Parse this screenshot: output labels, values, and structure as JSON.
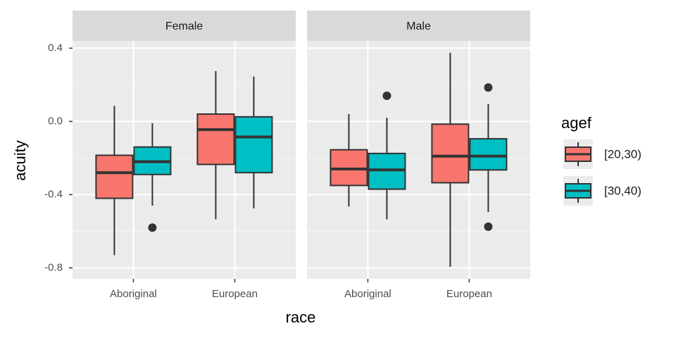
{
  "chart_data": {
    "type": "box",
    "facets": [
      "Female",
      "Male"
    ],
    "categories": [
      "Aboriginal",
      "European"
    ],
    "x_label": "race",
    "y_label": "acuity",
    "legend_title": "agef",
    "ylim": [
      -0.86,
      0.44
    ],
    "yticks": [
      -0.8,
      -0.4,
      {
        "value": 0,
        "label": "0.0"
      },
      0.4
    ],
    "grid": true,
    "series": [
      {
        "name": "[20,30)",
        "color": "#F8766D",
        "boxes": [
          [
            {
              "low": -0.73,
              "q1": -0.42,
              "median": -0.28,
              "q3": -0.185,
              "high": 0.085,
              "outliers": []
            },
            {
              "low": -0.535,
              "q1": -0.235,
              "median": -0.045,
              "q3": 0.04,
              "high": 0.275,
              "outliers": []
            }
          ],
          [
            {
              "low": -0.465,
              "q1": -0.35,
              "median": -0.26,
              "q3": -0.155,
              "high": 0.04,
              "outliers": []
            },
            {
              "low": -0.795,
              "q1": -0.335,
              "median": -0.19,
              "q3": -0.015,
              "high": 0.375,
              "outliers": []
            }
          ]
        ]
      },
      {
        "name": "[30,40)",
        "color": "#00BFC4",
        "boxes": [
          [
            {
              "low": -0.46,
              "q1": -0.29,
              "median": -0.22,
              "q3": -0.14,
              "high": -0.01,
              "outliers": [
                -0.58
              ]
            },
            {
              "low": -0.475,
              "q1": -0.28,
              "median": -0.085,
              "q3": 0.025,
              "high": 0.245,
              "outliers": []
            }
          ],
          [
            {
              "low": -0.535,
              "q1": -0.37,
              "median": -0.265,
              "q3": -0.175,
              "high": 0.02,
              "outliers": [
                0.14
              ]
            },
            {
              "low": -0.495,
              "q1": -0.265,
              "median": -0.19,
              "q3": -0.095,
              "high": 0.095,
              "outliers": [
                0.185,
                -0.575
              ]
            }
          ]
        ]
      }
    ]
  }
}
